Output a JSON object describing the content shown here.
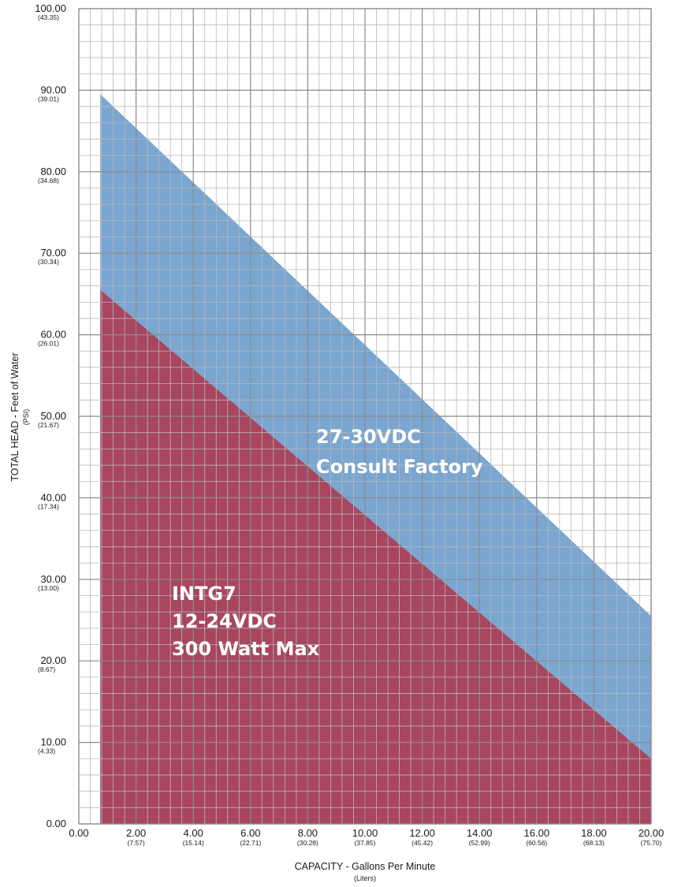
{
  "colors": {
    "upper_region": "#7aa6d0",
    "lower_region": "#a8465f",
    "grid_minor": "#b9b9b9",
    "grid_major": "#8a8a8a"
  },
  "chart_data": {
    "type": "area",
    "xlim": [
      0,
      20
    ],
    "ylim": [
      0,
      100
    ],
    "grid": true,
    "xlabel": "CAPACITY - Gallons Per Minute",
    "xlabel_sub": "(Liters)",
    "ylabel": "TOTAL HEAD - Feet of Water",
    "ylabel_sub": "(PSI)",
    "x_ticks": [
      {
        "value": 0,
        "label": "0.00",
        "sub": ""
      },
      {
        "value": 2,
        "label": "2.00",
        "sub": "(7.57)"
      },
      {
        "value": 4,
        "label": "4.00",
        "sub": "(15.14)"
      },
      {
        "value": 6,
        "label": "6.00",
        "sub": "(22.71)"
      },
      {
        "value": 8,
        "label": "8.00",
        "sub": "(30.28)"
      },
      {
        "value": 10,
        "label": "10.00",
        "sub": "(37.85)"
      },
      {
        "value": 12,
        "label": "12.00",
        "sub": "(45.42)"
      },
      {
        "value": 14,
        "label": "14.00",
        "sub": "(52.99)"
      },
      {
        "value": 16,
        "label": "16.00",
        "sub": "(60.56)"
      },
      {
        "value": 18,
        "label": "18.00",
        "sub": "(68.13)"
      },
      {
        "value": 20,
        "label": "20.00",
        "sub": "(75.70)"
      }
    ],
    "y_ticks": [
      {
        "value": 0,
        "label": "0.00",
        "sub": ""
      },
      {
        "value": 10,
        "label": "10.00",
        "sub": "(4.33)"
      },
      {
        "value": 20,
        "label": "20.00",
        "sub": "(8.67)"
      },
      {
        "value": 30,
        "label": "30.00",
        "sub": "(13.00)"
      },
      {
        "value": 40,
        "label": "40.00",
        "sub": "(17.34)"
      },
      {
        "value": 50,
        "label": "50.00",
        "sub": "(21.67)"
      },
      {
        "value": 60,
        "label": "60.00",
        "sub": "(26.01)"
      },
      {
        "value": 70,
        "label": "70.00",
        "sub": "(30.34)"
      },
      {
        "value": 80,
        "label": "80.00",
        "sub": "(34.68)"
      },
      {
        "value": 90,
        "label": "90.00",
        "sub": "(39.01)"
      },
      {
        "value": 100,
        "label": "100.00",
        "sub": "(43.35)"
      }
    ],
    "series": [
      {
        "name": "27-30VDC Consult Factory",
        "label_lines": [
          "27-30VDC",
          "Consult Factory"
        ],
        "x": [
          0.75,
          20
        ],
        "y": [
          89.5,
          25.5
        ]
      },
      {
        "name": "INTG7 12-24VDC 300 Watt Max",
        "label_lines": [
          "INTG7",
          "12-24VDC",
          "300 Watt Max"
        ],
        "x": [
          0.75,
          20
        ],
        "y": [
          65.5,
          8
        ]
      }
    ]
  }
}
